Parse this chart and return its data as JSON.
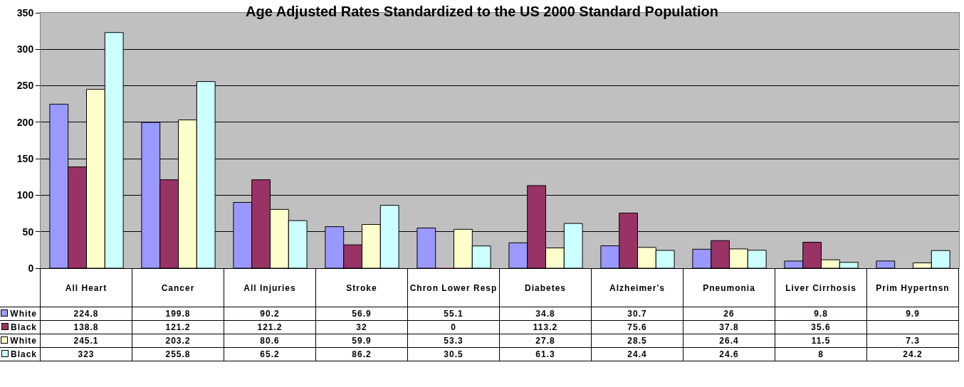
{
  "chart_data": {
    "type": "bar",
    "title": "Age Adjusted Rates Standardized to the US 2000 Standard Population",
    "categories": [
      "All Heart",
      "Cancer",
      "All Injuries",
      "Stroke",
      "Chron Lower Resp",
      "Diabetes",
      "Alzheimer's",
      "Pneumonia",
      "Liver Cirrhosis",
      "Prim Hypertnsn"
    ],
    "series": [
      {
        "name": "White",
        "color": "#9999ff",
        "values": [
          224.8,
          199.8,
          90.2,
          56.9,
          55.1,
          34.8,
          30.7,
          26,
          9.8,
          9.9
        ]
      },
      {
        "name": "Black",
        "color": "#993366",
        "values": [
          138.8,
          121.2,
          121.2,
          32,
          0,
          113.2,
          75.6,
          37.8,
          35.6,
          null
        ]
      },
      {
        "name": "White",
        "color": "#ffffcc",
        "values": [
          245.1,
          203.2,
          80.6,
          59.9,
          53.3,
          27.8,
          28.5,
          26.4,
          11.5,
          7.3
        ]
      },
      {
        "name": "Black",
        "color": "#ccffff",
        "values": [
          323,
          255.8,
          65.2,
          86.2,
          30.5,
          61.3,
          24.4,
          24.6,
          8,
          24.2
        ]
      }
    ],
    "ylim": [
      0,
      350
    ],
    "yticks": [
      0,
      50,
      100,
      150,
      200,
      250,
      300,
      350
    ],
    "grid": "y",
    "legend": "bottom left",
    "tick_labels": "y",
    "data_labels": true
  }
}
